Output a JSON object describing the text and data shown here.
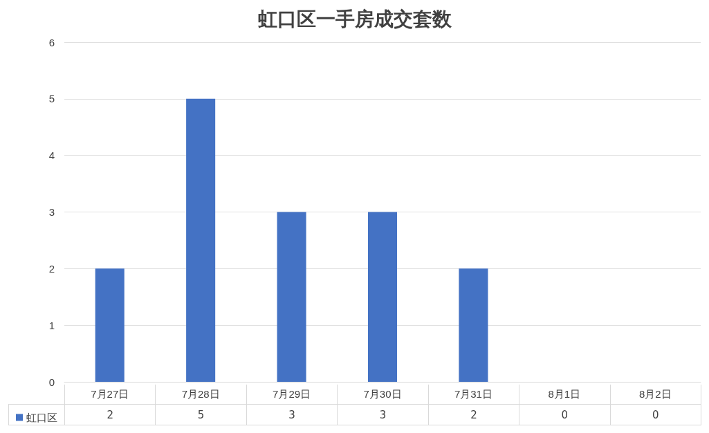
{
  "chart_data": {
    "type": "bar",
    "title": "虹口区一手房成交套数",
    "categories": [
      "7月27日",
      "7月28日",
      "7月29日",
      "7月30日",
      "7月31日",
      "8月1日",
      "8月2日"
    ],
    "series": [
      {
        "name": "虹口区",
        "color": "#4472c4",
        "values": [
          2,
          5,
          3,
          3,
          2,
          0,
          0
        ]
      }
    ],
    "ylim": [
      0,
      6
    ],
    "yticks": [
      0,
      1,
      2,
      3,
      4,
      5,
      6
    ],
    "grid": "y",
    "legend": "bottom left",
    "data_labels": true
  }
}
